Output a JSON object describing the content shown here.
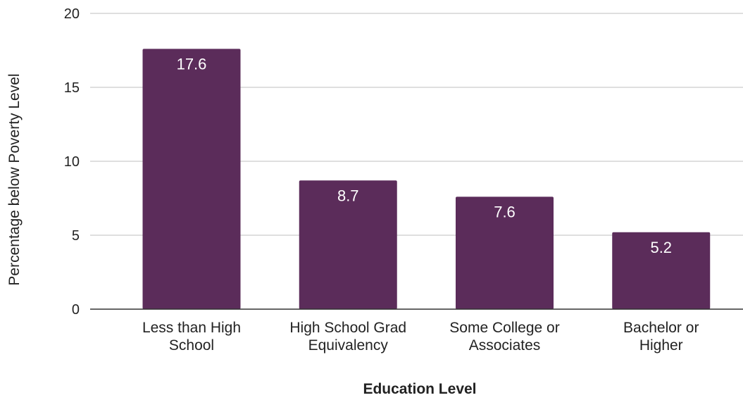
{
  "chart_data": {
    "type": "bar",
    "title": "",
    "xlabel": "Education Level",
    "ylabel": "Percentage below Poverty Level",
    "categories": [
      [
        "Less than High",
        "School"
      ],
      [
        "High School Grad",
        "Equivalency"
      ],
      [
        "Some College or",
        "Associates"
      ],
      [
        "Bachelor or",
        "Higher"
      ]
    ],
    "values": [
      17.6,
      8.7,
      7.6,
      5.2
    ],
    "data_labels": [
      "17.6",
      "8.7",
      "7.6",
      "5.2"
    ],
    "ylim": [
      0,
      20
    ],
    "yticks": [
      0,
      5,
      10,
      15,
      20
    ],
    "grid": true,
    "legend": "none",
    "colors": {
      "bar": "#5b2c5a",
      "grid": "#cccccc",
      "axis": "#333333",
      "text": "#222222",
      "data_label": "#ffffff"
    }
  }
}
